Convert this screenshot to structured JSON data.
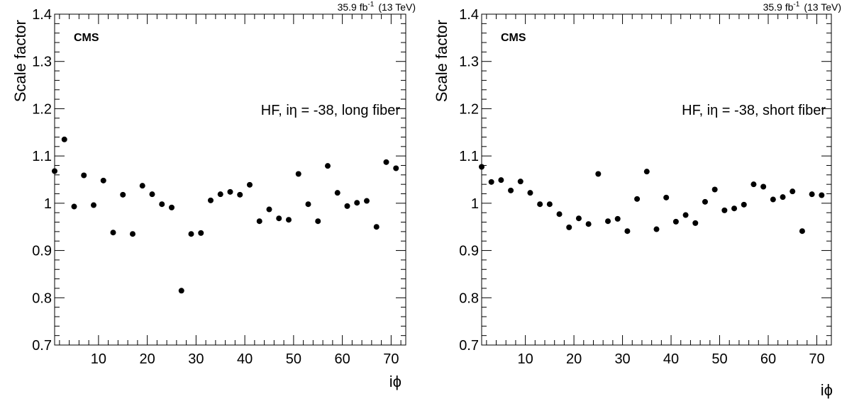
{
  "chart_data": [
    {
      "type": "scatter",
      "lumi": "35.9 fb",
      "lumi_exp": "-1",
      "energy": "(13 TeV)",
      "cms_label": "CMS",
      "annotation": "HF, iη = -38, long fiber",
      "xlabel": "iϕ",
      "ylabel": "Scale factor",
      "xlim": [
        1,
        73
      ],
      "ylim": [
        0.7,
        1.4
      ],
      "xticks": [
        "10",
        "20",
        "30",
        "40",
        "50",
        "60",
        "70"
      ],
      "yticks": [
        "0.7",
        "0.8",
        "0.9",
        "1",
        "1.1",
        "1.2",
        "1.3",
        "1.4"
      ],
      "x": [
        1,
        3,
        5,
        7,
        9,
        11,
        13,
        15,
        17,
        19,
        21,
        23,
        25,
        27,
        29,
        31,
        33,
        35,
        37,
        39,
        41,
        43,
        45,
        47,
        49,
        51,
        53,
        55,
        57,
        59,
        61,
        63,
        65,
        67,
        69,
        71
      ],
      "y": [
        1.068,
        1.135,
        0.993,
        1.059,
        0.996,
        1.048,
        0.938,
        1.018,
        0.935,
        1.037,
        1.019,
        0.998,
        0.991,
        0.815,
        0.935,
        0.937,
        1.006,
        1.019,
        1.024,
        1.018,
        1.039,
        0.962,
        0.987,
        0.968,
        0.965,
        1.062,
        0.998,
        0.962,
        1.079,
        1.022,
        0.994,
        1.001,
        1.005,
        0.95,
        1.087,
        1.074
      ]
    },
    {
      "type": "scatter",
      "lumi": "35.9 fb",
      "lumi_exp": "-1",
      "energy": "(13 TeV)",
      "cms_label": "CMS",
      "annotation": "HF, iη = -38, short fiber",
      "xlabel": "iϕ",
      "ylabel": "Scale factor",
      "xlim": [
        1,
        73
      ],
      "ylim": [
        0.7,
        1.4
      ],
      "xticks": [
        "10",
        "20",
        "30",
        "40",
        "50",
        "60",
        "70"
      ],
      "yticks": [
        "0.7",
        "0.8",
        "0.9",
        "1",
        "1.1",
        "1.2",
        "1.3",
        "1.4"
      ],
      "x": [
        1,
        3,
        5,
        7,
        9,
        11,
        13,
        15,
        17,
        19,
        21,
        23,
        25,
        27,
        29,
        31,
        33,
        35,
        37,
        39,
        41,
        43,
        45,
        47,
        49,
        51,
        53,
        55,
        57,
        59,
        61,
        63,
        65,
        67,
        69,
        71
      ],
      "y": [
        1.077,
        1.045,
        1.049,
        1.027,
        1.046,
        1.022,
        0.998,
        0.998,
        0.977,
        0.949,
        0.968,
        0.956,
        1.062,
        0.962,
        0.967,
        0.941,
        1.009,
        1.067,
        0.945,
        1.012,
        0.961,
        0.975,
        0.958,
        1.003,
        1.029,
        0.985,
        0.989,
        0.997,
        1.04,
        1.035,
        1.008,
        1.013,
        1.025,
        0.941,
        1.019,
        1.017
      ]
    }
  ]
}
